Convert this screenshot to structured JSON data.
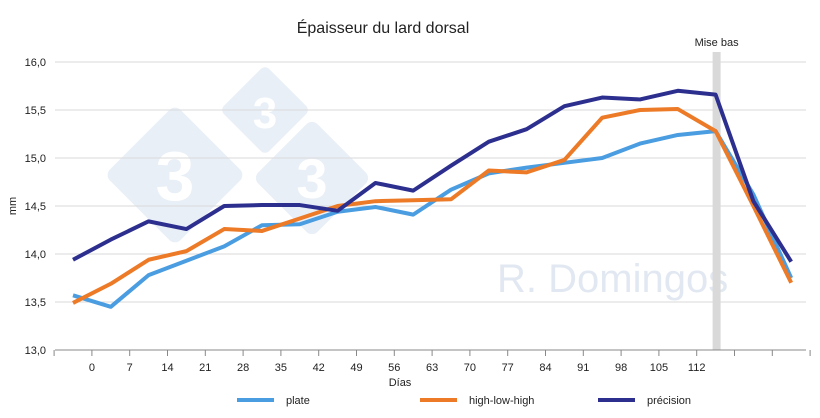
{
  "chart_data": {
    "type": "line",
    "title": "Épaisseur du lard dorsal",
    "xlabel": "Días",
    "ylabel": "mm",
    "ylim": [
      13.0,
      16.0
    ],
    "yticks": [
      "13,0",
      "13,5",
      "14,0",
      "14,5",
      "15,0",
      "15,5",
      "16,0"
    ],
    "xticks": [
      "0",
      "7",
      "14",
      "21",
      "28",
      "35",
      "42",
      "49",
      "56",
      "63",
      "70",
      "77",
      "84",
      "91",
      "98",
      "105",
      "112"
    ],
    "grid": true,
    "legend": "bottom",
    "annotation": {
      "label": "Mise bas",
      "after_point_index": 17
    },
    "series": [
      {
        "name": "plate",
        "color": "#4a9de0",
        "values": [
          13.57,
          13.45,
          13.78,
          13.93,
          14.08,
          14.3,
          14.31,
          14.44,
          14.49,
          14.41,
          14.67,
          14.84,
          14.9,
          14.95,
          15.0,
          15.15,
          15.24,
          15.28,
          14.62,
          13.75
        ]
      },
      {
        "name": "high-low-high",
        "color": "#ec7a26",
        "values": [
          13.49,
          13.69,
          13.94,
          14.03,
          14.26,
          14.24,
          14.37,
          14.5,
          14.55,
          14.56,
          14.57,
          14.87,
          14.85,
          14.98,
          15.42,
          15.5,
          15.51,
          15.28,
          14.5,
          13.7
        ]
      },
      {
        "name": "précision",
        "color": "#2d2f8f",
        "values": [
          13.94,
          14.15,
          14.34,
          14.26,
          14.5,
          14.51,
          14.51,
          14.45,
          14.74,
          14.66,
          14.92,
          15.17,
          15.3,
          15.54,
          15.63,
          15.61,
          15.7,
          15.66,
          14.55,
          13.92
        ]
      }
    ]
  },
  "watermark": {
    "text": "R. Domingos",
    "logo": "333"
  }
}
